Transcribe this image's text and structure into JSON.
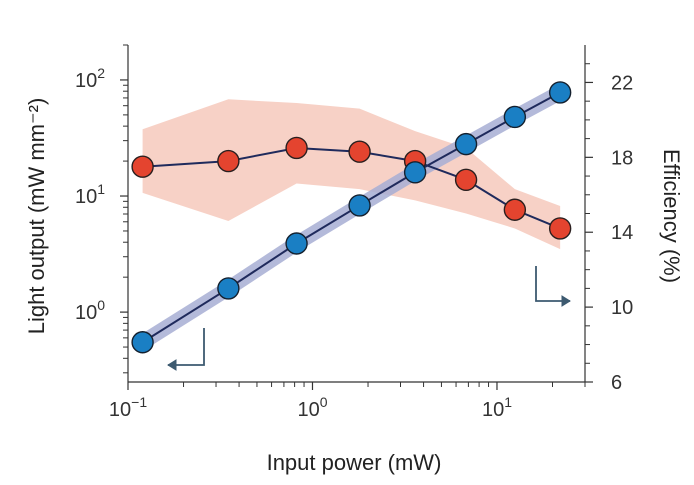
{
  "chart_data": {
    "type": "scatter",
    "title": "",
    "xlabel": "Input power (mW)",
    "ylabel_left": "Light output (mW mm⁻²)",
    "ylabel_right": "Efficiency (%)",
    "x_scale": "log",
    "y_left_scale": "log",
    "y_right_scale": "linear",
    "xlim": [
      0.1,
      30
    ],
    "ylim_left": [
      0.25,
      200
    ],
    "ylim_right": [
      6,
      24
    ],
    "x_ticks": [
      {
        "base": "10",
        "exp": "−1"
      },
      {
        "base": "10",
        "exp": "0"
      },
      {
        "base": "10",
        "exp": "1"
      }
    ],
    "y_left_ticks": [
      {
        "base": "10",
        "exp": "0"
      },
      {
        "base": "10",
        "exp": "1"
      },
      {
        "base": "10",
        "exp": "2"
      }
    ],
    "y_right_ticks": [
      "6",
      "10",
      "14",
      "18",
      "22"
    ],
    "grid": false,
    "series": [
      {
        "axis": "left",
        "color": "#1a7fc4",
        "band_color": "#a7aed3",
        "points": [
          {
            "x": 0.12,
            "y": 0.55
          },
          {
            "x": 0.35,
            "y": 1.6
          },
          {
            "x": 0.82,
            "y": 3.9
          },
          {
            "x": 1.8,
            "y": 8.3
          },
          {
            "x": 3.6,
            "y": 16
          },
          {
            "x": 6.8,
            "y": 28
          },
          {
            "x": 12.5,
            "y": 48
          },
          {
            "x": 22,
            "y": 78
          }
        ]
      },
      {
        "axis": "right",
        "color": "#e4442f",
        "band_color": "#f7d1c6",
        "points": [
          {
            "x": 0.12,
            "y": 17.5
          },
          {
            "x": 0.35,
            "y": 17.8
          },
          {
            "x": 0.82,
            "y": 18.5
          },
          {
            "x": 1.8,
            "y": 18.3
          },
          {
            "x": 3.6,
            "y": 17.8
          },
          {
            "x": 6.8,
            "y": 16.8
          },
          {
            "x": 12.5,
            "y": 15.2
          },
          {
            "x": 22,
            "y": 14.2
          }
        ],
        "band_upper": [
          19.5,
          21.1,
          20.9,
          20.6,
          19.4,
          18.5,
          16.3,
          15.4
        ],
        "band_lower": [
          16.1,
          14.6,
          16.6,
          16.3,
          15.7,
          15.0,
          14.2,
          13.1
        ]
      }
    ],
    "annotations": [
      {
        "type": "arrow",
        "direction": "left",
        "meaning": "left axis",
        "color": "#3d5a70"
      },
      {
        "type": "arrow",
        "direction": "right",
        "meaning": "right axis",
        "color": "#3d5a70"
      }
    ]
  }
}
